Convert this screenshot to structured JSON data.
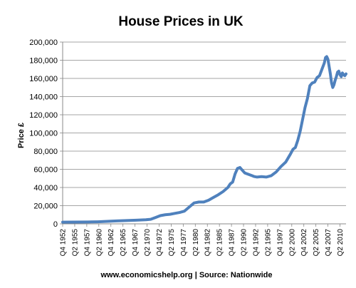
{
  "chart_data": {
    "type": "line",
    "title": "House Prices in UK",
    "ylabel": "Price £",
    "xlabel": "",
    "source": "www.economicshelp.org | Source: Nationwide",
    "ylim": [
      0,
      200000
    ],
    "yticks": [
      "0",
      "20,000",
      "40,000",
      "60,000",
      "80,000",
      "100,000",
      "120,000",
      "140,000",
      "160,000",
      "180,000",
      "200,000"
    ],
    "ytick_values": [
      0,
      20000,
      40000,
      60000,
      80000,
      100000,
      120000,
      140000,
      160000,
      180000,
      200000
    ],
    "xticks": [
      "Q4 1952",
      "Q2 1955",
      "Q4 1957",
      "Q2 1960",
      "Q4 1962",
      "Q2 1965",
      "Q4 1967",
      "Q2 1970",
      "Q4 1972",
      "Q2 1975",
      "Q4 1977",
      "Q2 1980",
      "Q4 1982",
      "Q2 1985",
      "Q4 1987",
      "Q2 1990",
      "Q4 1992",
      "Q2 1995",
      "Q4 1997",
      "Q2 2000",
      "Q4 2002",
      "Q2 2005",
      "Q4 2007",
      "Q2 2010"
    ],
    "xtick_years": [
      1952.75,
      1955.25,
      1957.75,
      1960.25,
      1962.75,
      1965.25,
      1967.75,
      1970.25,
      1972.75,
      1975.25,
      1977.75,
      1980.25,
      1982.75,
      1985.25,
      1987.75,
      1990.25,
      1992.75,
      1995.25,
      1997.75,
      2000.25,
      2002.75,
      2005.25,
      2007.75,
      2010.25
    ],
    "xlim": [
      1952.75,
      2011.5
    ],
    "grid": "horizontal",
    "legend": "none",
    "series": [
      {
        "color": "#4f81bd",
        "x": [
          1952.75,
          1955,
          1958,
          1960,
          1962,
          1964,
          1966,
          1968,
          1970,
          1971,
          1972,
          1973,
          1974,
          1975,
          1976,
          1977,
          1978,
          1979,
          1980,
          1981,
          1982,
          1983,
          1984,
          1985,
          1986,
          1987,
          1987.5,
          1988,
          1988.5,
          1989,
          1989.5,
          1990,
          1990.5,
          1991,
          1991.5,
          1992,
          1992.5,
          1993,
          1994,
          1995,
          1996,
          1997,
          1998,
          1999,
          2000,
          2000.5,
          2001,
          2001.5,
          2002,
          2002.5,
          2003,
          2003.5,
          2004,
          2004.5,
          2005,
          2005.5,
          2006,
          2006.5,
          2007,
          2007.25,
          2007.5,
          2007.75,
          2008,
          2008.25,
          2008.5,
          2008.75,
          2009,
          2009.25,
          2009.5,
          2009.75,
          2010,
          2010.25,
          2010.5,
          2010.75,
          2011,
          2011.25,
          2011.5
        ],
        "values": [
          1900,
          2000,
          2100,
          2300,
          2700,
          3200,
          3600,
          4000,
          4500,
          5000,
          7000,
          9000,
          10000,
          10500,
          11500,
          12500,
          14000,
          18500,
          23000,
          24000,
          24000,
          26000,
          29000,
          32000,
          35500,
          40000,
          44000,
          46000,
          55000,
          61000,
          62000,
          59000,
          56000,
          55000,
          54000,
          53000,
          52000,
          51500,
          52000,
          51500,
          53000,
          57000,
          63000,
          68000,
          77000,
          82000,
          84000,
          92000,
          102000,
          115000,
          128000,
          138000,
          152000,
          155000,
          156000,
          161000,
          163000,
          170000,
          177000,
          183000,
          184000,
          181000,
          173000,
          165000,
          155000,
          150000,
          153000,
          158000,
          162000,
          167000,
          168000,
          164000,
          162000,
          166000,
          164000,
          163000,
          165000
        ]
      }
    ]
  }
}
